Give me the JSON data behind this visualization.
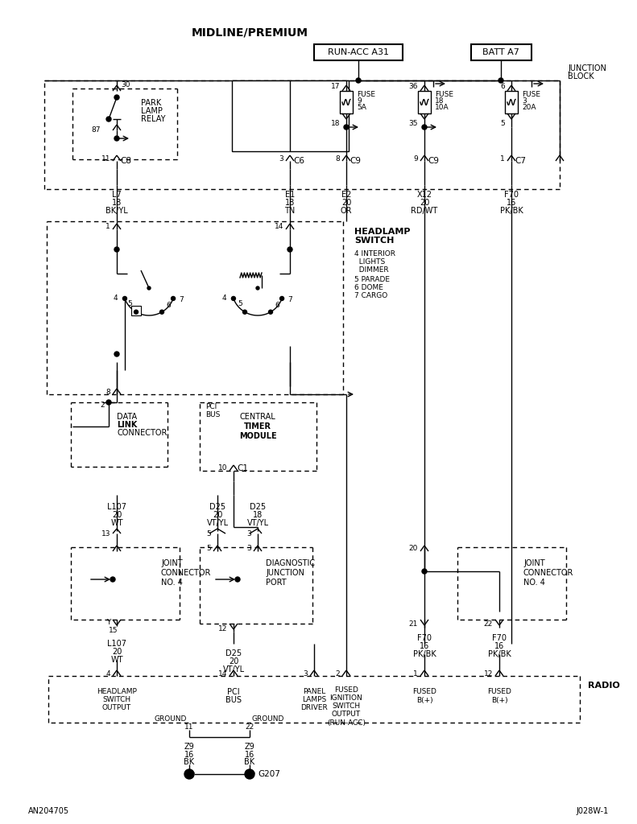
{
  "title": "MIDLINE/PREMIUM",
  "bg_color": "#ffffff",
  "line_color": "#000000",
  "footer_left": "AN204705",
  "footer_right": "J028W-1"
}
